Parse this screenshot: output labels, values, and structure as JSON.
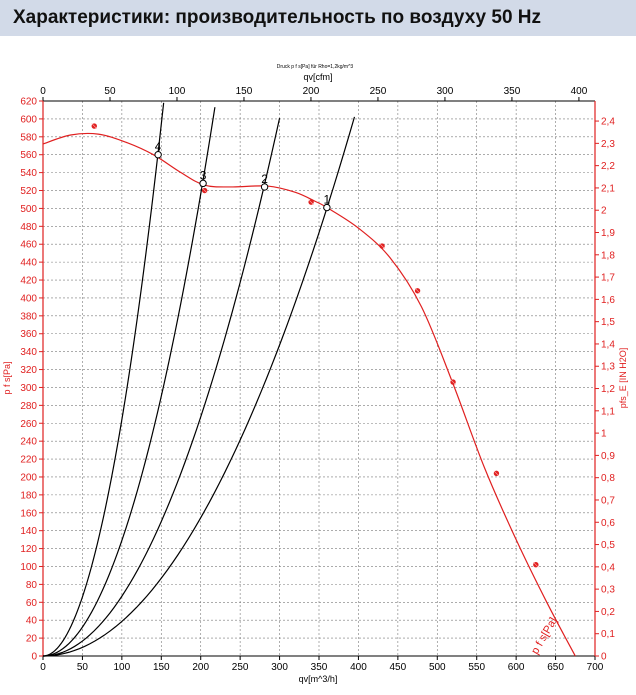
{
  "header": {
    "title": "Характеристики: производительность по воздуху 50 Hz"
  },
  "chart_data": {
    "type": "line",
    "title": "Druck p f s[Pa] für Rho=1,2kg/m^3",
    "xlabel": "qv[m^3/h]",
    "x2label": "qv[cfm]",
    "ylabel": "p f s[Pa]",
    "y2label": "pfs_E [IN H2O]",
    "xlim": [
      0,
      700
    ],
    "ylim": [
      0,
      620
    ],
    "x2lim": [
      0,
      412
    ],
    "y2lim": [
      0,
      2.49
    ],
    "x_ticks": [
      "0",
      "50",
      "100",
      "150",
      "200",
      "250",
      "300",
      "350",
      "400",
      "450",
      "500",
      "550",
      "600",
      "650",
      "700"
    ],
    "x2_ticks": [
      "0",
      "50",
      "100",
      "150",
      "200",
      "250",
      "300",
      "350",
      "400"
    ],
    "y_ticks": [
      "0",
      "20",
      "40",
      "60",
      "80",
      "100",
      "120",
      "140",
      "160",
      "180",
      "200",
      "220",
      "240",
      "260",
      "280",
      "300",
      "320",
      "340",
      "360",
      "380",
      "400",
      "420",
      "440",
      "460",
      "480",
      "500",
      "520",
      "540",
      "560",
      "580",
      "600",
      "620"
    ],
    "y2_ticks": [
      "0",
      "0,1",
      "0,2",
      "0,3",
      "0,4",
      "0,5",
      "0,6",
      "0,7",
      "0,8",
      "0,9",
      "1",
      "1,1",
      "1,2",
      "1,3",
      "1,4",
      "1,5",
      "1,6",
      "1,7",
      "1,8",
      "1,9",
      "2",
      "2,1",
      "2,2",
      "2,3",
      "2,4"
    ],
    "grid": true,
    "series": [
      {
        "name": "p f s[Pa]",
        "color": "#e02020",
        "points": [
          [
            0,
            572
          ],
          [
            35,
            582
          ],
          [
            70,
            583
          ],
          [
            105,
            574
          ],
          [
            140,
            560
          ],
          [
            175,
            540
          ],
          [
            205,
            526
          ],
          [
            240,
            524
          ],
          [
            285,
            525
          ],
          [
            320,
            518
          ],
          [
            345,
            508
          ],
          [
            360,
            501
          ],
          [
            400,
            478
          ],
          [
            440,
            445
          ],
          [
            480,
            390
          ],
          [
            520,
            304
          ],
          [
            560,
            210
          ],
          [
            600,
            130
          ],
          [
            640,
            58
          ],
          [
            675,
            0
          ]
        ],
        "markers": [
          [
            65,
            592
          ],
          [
            205,
            520
          ],
          [
            340,
            507
          ],
          [
            430,
            458
          ],
          [
            475,
            408
          ],
          [
            520,
            306
          ],
          [
            575,
            204
          ],
          [
            625,
            102
          ]
        ]
      }
    ],
    "system_curves": [
      {
        "label": "1",
        "k": 0.00386,
        "x_end": 395
      },
      {
        "label": "2",
        "k": 0.006676,
        "x_end": 300
      },
      {
        "label": "3",
        "k": 0.0129,
        "x_end": 218
      },
      {
        "label": "4",
        "k": 0.0264,
        "x_end": 153
      }
    ],
    "operating_points": [
      {
        "label": "1",
        "x": 360,
        "y": 501
      },
      {
        "label": "2",
        "x": 281,
        "y": 524
      },
      {
        "label": "3",
        "x": 203,
        "y": 528
      },
      {
        "label": "4",
        "x": 146,
        "y": 560
      }
    ],
    "curve_label": "p f s[Pa]"
  }
}
